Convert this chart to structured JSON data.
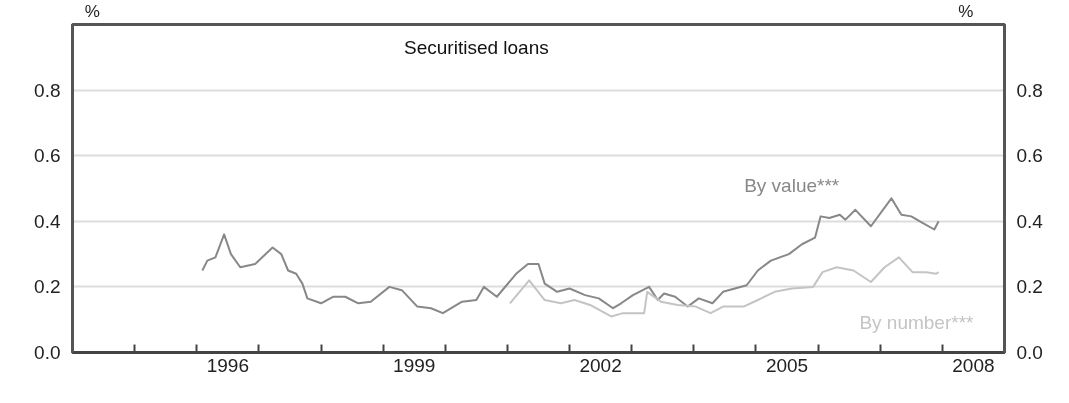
{
  "chart_data": {
    "type": "line",
    "title": "Securitised loans",
    "ylabel": "%",
    "y2label": "%",
    "xlim": [
      1994,
      2009
    ],
    "ylim": [
      0,
      1
    ],
    "y2lim": [
      0,
      1
    ],
    "xticks": [
      {
        "value": 1995,
        "label": null
      },
      {
        "value": 1996,
        "label": null
      },
      {
        "value": 1997,
        "label": null
      },
      {
        "value": 1998,
        "label": null
      },
      {
        "value": 1999,
        "label": null
      },
      {
        "value": 2000,
        "label": null
      },
      {
        "value": 2001,
        "label": null
      },
      {
        "value": 2002,
        "label": null
      },
      {
        "value": 2003,
        "label": null
      },
      {
        "value": 2004,
        "label": null
      },
      {
        "value": 2005,
        "label": null
      },
      {
        "value": 2006,
        "label": null
      },
      {
        "value": 2007,
        "label": null
      },
      {
        "value": 2008,
        "label": null
      },
      {
        "value": 1996.5,
        "label": "1996"
      },
      {
        "value": 1999.5,
        "label": "1999"
      },
      {
        "value": 2002.5,
        "label": "2002"
      },
      {
        "value": 2005.5,
        "label": "2005"
      },
      {
        "value": 2008.5,
        "label": "2008"
      }
    ],
    "yticks": [
      {
        "value": 0,
        "label": "0.0"
      },
      {
        "value": 0.2,
        "label": "0.2"
      },
      {
        "value": 0.4,
        "label": "0.4"
      },
      {
        "value": 0.6,
        "label": "0.6"
      },
      {
        "value": 0.8,
        "label": "0.8"
      }
    ],
    "y2ticks": [
      {
        "value": 0,
        "label": "0.0"
      },
      {
        "value": 0.2,
        "label": "0.2"
      },
      {
        "value": 0.4,
        "label": "0.4"
      },
      {
        "value": 0.6,
        "label": "0.6"
      },
      {
        "value": 0.8,
        "label": "0.8"
      }
    ],
    "grid": "y",
    "legend": false,
    "marker": "none",
    "line_style": "solid",
    "series": [
      {
        "name": "By value***",
        "color": "#888888",
        "x": [
          1996.09,
          1996.17,
          1996.3,
          1996.44,
          1996.55,
          1996.7,
          1996.94,
          1997.22,
          1997.36,
          1997.47,
          1997.6,
          1997.7,
          1997.78,
          1998.0,
          1998.2,
          1998.39,
          1998.6,
          1998.8,
          1999.1,
          1999.3,
          1999.55,
          1999.77,
          1999.96,
          2000.27,
          2000.5,
          2000.62,
          2000.83,
          2001.14,
          2001.33,
          2001.5,
          2001.6,
          2001.8,
          2002.0,
          2002.25,
          2002.47,
          2002.7,
          2002.83,
          2003.02,
          2003.28,
          2003.42,
          2003.52,
          2003.7,
          2003.9,
          2004.08,
          2004.3,
          2004.47,
          2004.85,
          2005.03,
          2005.24,
          2005.53,
          2005.74,
          2005.95,
          2006.04,
          2006.18,
          2006.35,
          2006.44,
          2006.6,
          2006.85,
          2007.18,
          2007.34,
          2007.5,
          2007.68,
          2007.87,
          2007.94
        ],
        "values": [
          0.25,
          0.28,
          0.29,
          0.36,
          0.3,
          0.26,
          0.27,
          0.32,
          0.3,
          0.25,
          0.24,
          0.21,
          0.165,
          0.15,
          0.17,
          0.17,
          0.15,
          0.155,
          0.2,
          0.19,
          0.14,
          0.135,
          0.12,
          0.155,
          0.16,
          0.2,
          0.17,
          0.24,
          0.27,
          0.27,
          0.21,
          0.185,
          0.195,
          0.175,
          0.165,
          0.135,
          0.15,
          0.175,
          0.2,
          0.16,
          0.18,
          0.17,
          0.14,
          0.165,
          0.15,
          0.185,
          0.205,
          0.25,
          0.28,
          0.3,
          0.33,
          0.35,
          0.415,
          0.41,
          0.42,
          0.405,
          0.435,
          0.385,
          0.47,
          0.42,
          0.415,
          0.395,
          0.375,
          0.4
        ]
      },
      {
        "name": "By number***",
        "color": "#c4c4c4",
        "x": [
          2001.04,
          2001.35,
          2001.6,
          2001.86,
          2002.08,
          2002.33,
          2002.67,
          2002.86,
          2003.2,
          2003.25,
          2003.47,
          2003.74,
          2004.03,
          2004.27,
          2004.47,
          2004.8,
          2005.03,
          2005.3,
          2005.58,
          2005.92,
          2006.07,
          2006.3,
          2006.57,
          2006.85,
          2007.07,
          2007.3,
          2007.52,
          2007.74,
          2007.9,
          2007.94
        ],
        "values": [
          0.15,
          0.22,
          0.16,
          0.15,
          0.16,
          0.145,
          0.11,
          0.12,
          0.12,
          0.185,
          0.155,
          0.145,
          0.14,
          0.12,
          0.14,
          0.14,
          0.16,
          0.185,
          0.195,
          0.2,
          0.245,
          0.26,
          0.25,
          0.215,
          0.26,
          0.29,
          0.245,
          0.245,
          0.24,
          0.245
        ]
      }
    ]
  }
}
